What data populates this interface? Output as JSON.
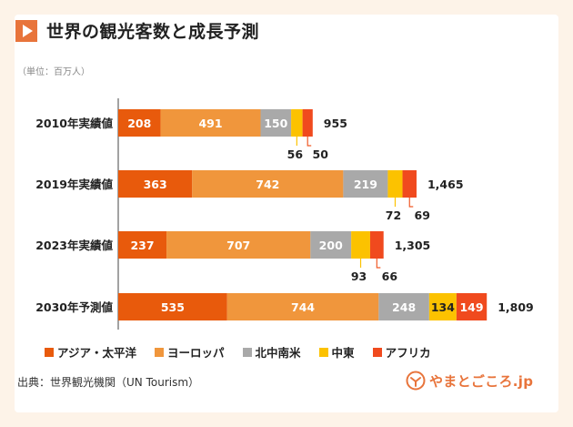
{
  "title": "世界の観光客数と成長予測",
  "unit": "（単位：百万人）",
  "source": "出典：世界観光機関（UN Tourism）",
  "logo_text": "やまとごころ.jp",
  "colors": {
    "page_bg": "#fdf3e8",
    "accent": "#e8743b",
    "ticks": "#f05a28"
  },
  "chart_data": {
    "type": "bar",
    "orientation": "horizontal",
    "stacked": true,
    "categories": [
      "2010年実績値",
      "2019年実績値",
      "2023年実績値",
      "2030年予測値"
    ],
    "series": [
      {
        "name": "アジア・太平洋",
        "color": "#e85a0c",
        "values": [
          208,
          363,
          237,
          535
        ]
      },
      {
        "name": "ヨーロッパ",
        "color": "#f0963c",
        "values": [
          491,
          742,
          707,
          744
        ]
      },
      {
        "name": "北中南米",
        "color": "#a9a9a9",
        "values": [
          150,
          219,
          200,
          248
        ]
      },
      {
        "name": "中東",
        "color": "#fcc200",
        "values": [
          56,
          72,
          93,
          134
        ]
      },
      {
        "name": "アフリカ",
        "color": "#f04a1e",
        "values": [
          50,
          69,
          66,
          149
        ]
      }
    ],
    "totals": [
      "955",
      "1,465",
      "1,305",
      "1,809"
    ],
    "legend_position": "bottom",
    "grid": false,
    "xlim": [
      0,
      1809
    ]
  }
}
